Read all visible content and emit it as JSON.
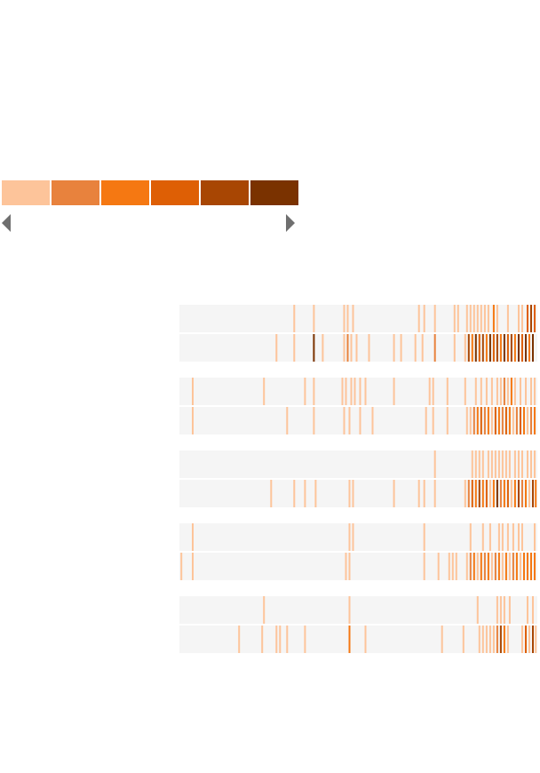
{
  "colors": {
    "track": "#f5f5f5",
    "scale": [
      "#fdc49a",
      "#e8823d",
      "#f57812",
      "#de5f05",
      "#a84603",
      "#7a3200"
    ]
  },
  "legend": {
    "left_icon": "triangle-left-icon",
    "right_icon": "triangle-right-icon"
  },
  "chart_data": {
    "type": "heatmap",
    "title": "",
    "color_levels": 6,
    "x_range": [
      0,
      100
    ],
    "groups": [
      {
        "rows": [
          {
            "events": [
              [
                32,
                0
              ],
              [
                37.5,
                0
              ],
              [
                46,
                0
              ],
              [
                47,
                0
              ],
              [
                48.5,
                0
              ],
              [
                67,
                0
              ],
              [
                68.5,
                0
              ],
              [
                71.5,
                0
              ],
              [
                77,
                0
              ],
              [
                78,
                0
              ],
              [
                80.5,
                0
              ],
              [
                81.5,
                0
              ],
              [
                82.5,
                0
              ],
              [
                83.5,
                0
              ],
              [
                84.5,
                0
              ],
              [
                85.5,
                0
              ],
              [
                86.5,
                0
              ],
              [
                88,
                2
              ],
              [
                89,
                0
              ],
              [
                92,
                0
              ],
              [
                95,
                0
              ],
              [
                96,
                0
              ],
              [
                97.5,
                3
              ],
              [
                98.5,
                4
              ],
              [
                99.5,
                3
              ]
            ]
          },
          {
            "events": [
              [
                27,
                0
              ],
              [
                32,
                0
              ],
              [
                37.5,
                5
              ],
              [
                40,
                0
              ],
              [
                46,
                0
              ],
              [
                47,
                1
              ],
              [
                48,
                0
              ],
              [
                49.5,
                0
              ],
              [
                53,
                0
              ],
              [
                60,
                0
              ],
              [
                62,
                0
              ],
              [
                66,
                0
              ],
              [
                68,
                0
              ],
              [
                71.5,
                1
              ],
              [
                77,
                0
              ],
              [
                80,
                0
              ],
              [
                81,
                4
              ],
              [
                82,
                2
              ],
              [
                83,
                5
              ],
              [
                84,
                3
              ],
              [
                85,
                4
              ],
              [
                86,
                2
              ],
              [
                87,
                5
              ],
              [
                88,
                3
              ],
              [
                89,
                4
              ],
              [
                90,
                2
              ],
              [
                91,
                5
              ],
              [
                92,
                3
              ],
              [
                93,
                4
              ],
              [
                94,
                2
              ],
              [
                95,
                5
              ],
              [
                96,
                3
              ],
              [
                97,
                5
              ],
              [
                98,
                2
              ],
              [
                99,
                5
              ]
            ]
          }
        ]
      },
      {
        "rows": [
          {
            "events": [
              [
                3.5,
                0
              ],
              [
                23.5,
                0
              ],
              [
                35,
                0
              ],
              [
                37.5,
                0
              ],
              [
                45.5,
                0
              ],
              [
                46.5,
                0
              ],
              [
                48,
                0
              ],
              [
                49,
                0
              ],
              [
                50.5,
                0
              ],
              [
                52,
                0
              ],
              [
                60,
                0
              ],
              [
                70,
                0
              ],
              [
                71,
                0
              ],
              [
                75,
                0
              ],
              [
                80,
                0
              ],
              [
                83,
                0
              ],
              [
                84.5,
                0
              ],
              [
                86,
                0
              ],
              [
                87.5,
                0
              ],
              [
                89,
                0
              ],
              [
                90,
                0
              ],
              [
                91,
                1
              ],
              [
                92,
                0
              ],
              [
                93,
                2
              ],
              [
                94,
                0
              ],
              [
                95.5,
                0
              ],
              [
                97,
                0
              ],
              [
                98.5,
                0
              ],
              [
                99.5,
                0
              ]
            ]
          },
          {
            "events": [
              [
                3.5,
                0
              ],
              [
                30,
                0
              ],
              [
                37.5,
                0
              ],
              [
                46,
                0
              ],
              [
                47.5,
                0
              ],
              [
                50.5,
                0
              ],
              [
                54,
                0
              ],
              [
                69,
                0
              ],
              [
                71,
                0
              ],
              [
                75,
                0
              ],
              [
                80.5,
                0
              ],
              [
                81.5,
                0
              ],
              [
                82.5,
                1
              ],
              [
                83.5,
                2
              ],
              [
                84.5,
                3
              ],
              [
                85.5,
                1
              ],
              [
                86.5,
                2
              ],
              [
                87.5,
                0
              ],
              [
                88.5,
                3
              ],
              [
                89.5,
                2
              ],
              [
                90.5,
                1
              ],
              [
                91.5,
                3
              ],
              [
                92.5,
                2
              ],
              [
                93.5,
                0
              ],
              [
                94.5,
                1
              ],
              [
                95.5,
                3
              ],
              [
                96.5,
                2
              ],
              [
                97.5,
                0
              ],
              [
                98.5,
                1
              ],
              [
                99.5,
                2
              ]
            ]
          }
        ]
      },
      {
        "rows": [
          {
            "events": [
              [
                71.5,
                0
              ],
              [
                82,
                0
              ],
              [
                83,
                0
              ],
              [
                84,
                0
              ],
              [
                85,
                0
              ],
              [
                86.5,
                0
              ],
              [
                87.5,
                0
              ],
              [
                88.5,
                0
              ],
              [
                89.5,
                0
              ],
              [
                90.5,
                0
              ],
              [
                91.5,
                0
              ],
              [
                92.5,
                0
              ],
              [
                94,
                0
              ],
              [
                95,
                0
              ],
              [
                96,
                0
              ],
              [
                97.5,
                0
              ],
              [
                98.5,
                0
              ],
              [
                99.5,
                0
              ]
            ]
          },
          {
            "events": [
              [
                25.5,
                0
              ],
              [
                32,
                0
              ],
              [
                35,
                0
              ],
              [
                38,
                0
              ],
              [
                47.5,
                0
              ],
              [
                48.5,
                0
              ],
              [
                60,
                0
              ],
              [
                67,
                0
              ],
              [
                68.5,
                0
              ],
              [
                71.5,
                0
              ],
              [
                80,
                0
              ],
              [
                81,
                1
              ],
              [
                82,
                3
              ],
              [
                83,
                2
              ],
              [
                84,
                4
              ],
              [
                85,
                2
              ],
              [
                86,
                3
              ],
              [
                87,
                0
              ],
              [
                88,
                2
              ],
              [
                89,
                5
              ],
              [
                90,
                1
              ],
              [
                91,
                2
              ],
              [
                92,
                3
              ],
              [
                93,
                0
              ],
              [
                94,
                2
              ],
              [
                95,
                4
              ],
              [
                96,
                1
              ],
              [
                97,
                2
              ],
              [
                98,
                0
              ],
              [
                99,
                4
              ],
              [
                99.8,
                2
              ]
            ]
          }
        ]
      },
      {
        "rows": [
          {
            "events": [
              [
                3.5,
                0
              ],
              [
                47.5,
                0
              ],
              [
                48.5,
                0
              ],
              [
                68.5,
                0
              ],
              [
                81.5,
                0
              ],
              [
                85,
                0
              ],
              [
                87,
                0
              ],
              [
                89.5,
                0
              ],
              [
                90.5,
                0
              ],
              [
                92,
                0
              ],
              [
                93.5,
                0
              ],
              [
                95,
                0
              ],
              [
                96,
                0
              ],
              [
                99.5,
                0
              ]
            ]
          },
          {
            "events": [
              [
                0.3,
                0
              ],
              [
                3.5,
                0
              ],
              [
                46.5,
                0
              ],
              [
                47.5,
                0
              ],
              [
                68.5,
                0
              ],
              [
                72.5,
                0
              ],
              [
                75.5,
                0
              ],
              [
                76.5,
                0
              ],
              [
                77.5,
                0
              ],
              [
                80.5,
                0
              ],
              [
                81.5,
                1
              ],
              [
                82.5,
                2
              ],
              [
                83.5,
                0
              ],
              [
                84.5,
                2
              ],
              [
                85.5,
                1
              ],
              [
                86.5,
                2
              ],
              [
                87.5,
                0
              ],
              [
                88.5,
                1
              ],
              [
                89.5,
                2
              ],
              [
                90.5,
                0
              ],
              [
                91.5,
                2
              ],
              [
                92.5,
                0
              ],
              [
                93.5,
                1
              ],
              [
                94.5,
                2
              ],
              [
                95.5,
                0
              ],
              [
                96.5,
                2
              ],
              [
                97.5,
                2
              ],
              [
                98.5,
                2
              ],
              [
                99.5,
                2
              ]
            ]
          }
        ]
      },
      {
        "rows": [
          {
            "events": [
              [
                23.5,
                0
              ],
              [
                47.5,
                0
              ],
              [
                83.5,
                0
              ],
              [
                89,
                0
              ],
              [
                90,
                0
              ],
              [
                91,
                0
              ],
              [
                92.5,
                0
              ],
              [
                97.5,
                0
              ],
              [
                99,
                0
              ]
            ]
          },
          {
            "events": [
              [
                16.5,
                0
              ],
              [
                23,
                0
              ],
              [
                27,
                0
              ],
              [
                28,
                0
              ],
              [
                30,
                0
              ],
              [
                35,
                0
              ],
              [
                47.5,
                2
              ],
              [
                52,
                0
              ],
              [
                73.5,
                0
              ],
              [
                79.5,
                0
              ],
              [
                84,
                0
              ],
              [
                85,
                0
              ],
              [
                86,
                0
              ],
              [
                87,
                0
              ],
              [
                88,
                0
              ],
              [
                89,
                1
              ],
              [
                90,
                4
              ],
              [
                91,
                2
              ],
              [
                92,
                0
              ],
              [
                96,
                0
              ],
              [
                97,
                3
              ],
              [
                98,
                0
              ],
              [
                99,
                4
              ],
              [
                99.8,
                0
              ]
            ]
          }
        ]
      }
    ]
  }
}
